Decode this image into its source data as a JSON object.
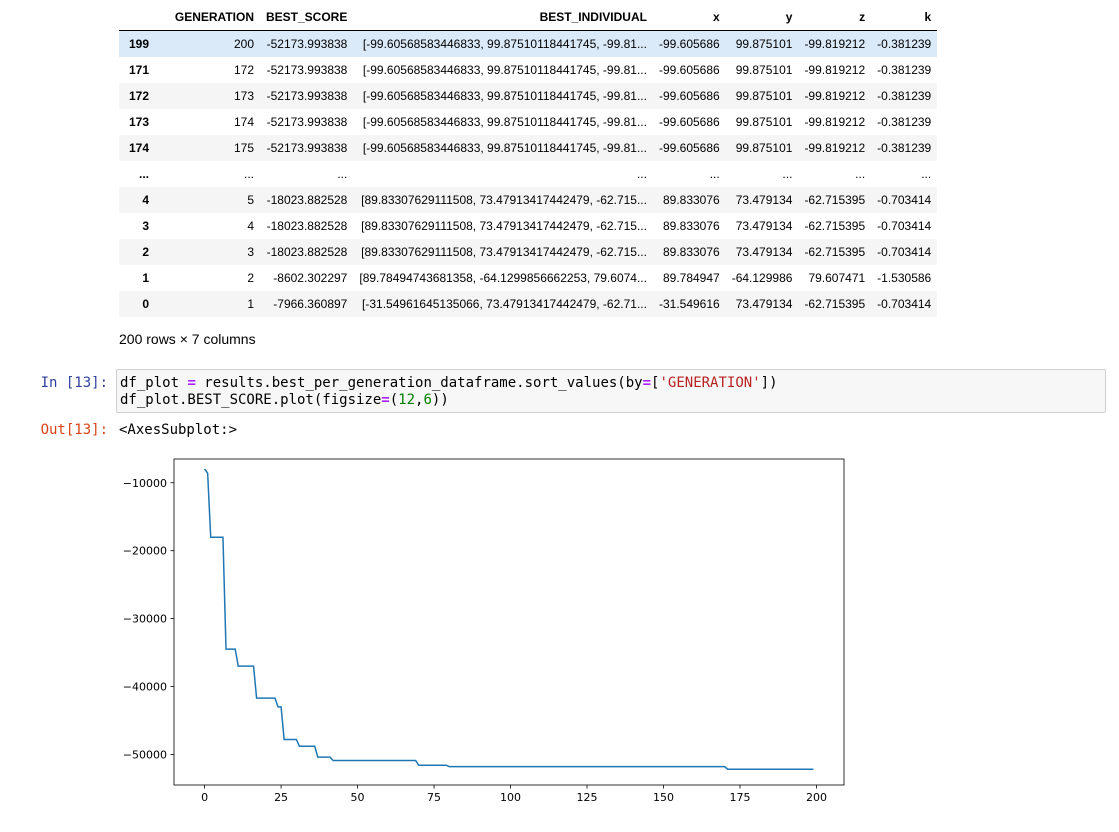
{
  "dataframe": {
    "columns": [
      "GENERATION",
      "BEST_SCORE",
      "BEST_INDIVIDUAL",
      "x",
      "y",
      "z",
      "k"
    ],
    "rows": [
      {
        "index": "199",
        "GENERATION": "200",
        "BEST_SCORE": "-52173.993838",
        "BEST_INDIVIDUAL": "[-99.60568583446833, 99.87510118441745, -99.81...",
        "x": "-99.605686",
        "y": "99.875101",
        "z": "-99.819212",
        "k": "-0.381239"
      },
      {
        "index": "171",
        "GENERATION": "172",
        "BEST_SCORE": "-52173.993838",
        "BEST_INDIVIDUAL": "[-99.60568583446833, 99.87510118441745, -99.81...",
        "x": "-99.605686",
        "y": "99.875101",
        "z": "-99.819212",
        "k": "-0.381239"
      },
      {
        "index": "172",
        "GENERATION": "173",
        "BEST_SCORE": "-52173.993838",
        "BEST_INDIVIDUAL": "[-99.60568583446833, 99.87510118441745, -99.81...",
        "x": "-99.605686",
        "y": "99.875101",
        "z": "-99.819212",
        "k": "-0.381239"
      },
      {
        "index": "173",
        "GENERATION": "174",
        "BEST_SCORE": "-52173.993838",
        "BEST_INDIVIDUAL": "[-99.60568583446833, 99.87510118441745, -99.81...",
        "x": "-99.605686",
        "y": "99.875101",
        "z": "-99.819212",
        "k": "-0.381239"
      },
      {
        "index": "174",
        "GENERATION": "175",
        "BEST_SCORE": "-52173.993838",
        "BEST_INDIVIDUAL": "[-99.60568583446833, 99.87510118441745, -99.81...",
        "x": "-99.605686",
        "y": "99.875101",
        "z": "-99.819212",
        "k": "-0.381239"
      },
      {
        "index": "...",
        "GENERATION": "...",
        "BEST_SCORE": "...",
        "BEST_INDIVIDUAL": "...",
        "x": "...",
        "y": "...",
        "z": "...",
        "k": "..."
      },
      {
        "index": "4",
        "GENERATION": "5",
        "BEST_SCORE": "-18023.882528",
        "BEST_INDIVIDUAL": "[89.83307629111508, 73.47913417442479, -62.715...",
        "x": "89.833076",
        "y": "73.479134",
        "z": "-62.715395",
        "k": "-0.703414"
      },
      {
        "index": "3",
        "GENERATION": "4",
        "BEST_SCORE": "-18023.882528",
        "BEST_INDIVIDUAL": "[89.83307629111508, 73.47913417442479, -62.715...",
        "x": "89.833076",
        "y": "73.479134",
        "z": "-62.715395",
        "k": "-0.703414"
      },
      {
        "index": "2",
        "GENERATION": "3",
        "BEST_SCORE": "-18023.882528",
        "BEST_INDIVIDUAL": "[89.83307629111508, 73.47913417442479, -62.715...",
        "x": "89.833076",
        "y": "73.479134",
        "z": "-62.715395",
        "k": "-0.703414"
      },
      {
        "index": "1",
        "GENERATION": "2",
        "BEST_SCORE": "-8602.302297",
        "BEST_INDIVIDUAL": "[89.78494743681358, -64.1299856662253, 79.6074...",
        "x": "89.784947",
        "y": "-64.129986",
        "z": "79.607471",
        "k": "-1.530586"
      },
      {
        "index": "0",
        "GENERATION": "1",
        "BEST_SCORE": "-7966.360897",
        "BEST_INDIVIDUAL": "[-31.54961645135066, 73.47913417442479, -62.71...",
        "x": "-31.549616",
        "y": "73.479134",
        "z": "-62.715395",
        "k": "-0.703414"
      }
    ],
    "shape_note": "200 rows × 7 columns"
  },
  "cell13": {
    "in_prompt": "In [13]:",
    "out_prompt": "Out[13]:",
    "code": [
      [
        {
          "t": "df_plot ",
          "c": ""
        },
        {
          "t": "=",
          "c": "op"
        },
        {
          "t": " results.best_per_generation_dataframe.sort_values(by",
          "c": ""
        },
        {
          "t": "=",
          "c": "op"
        },
        {
          "t": "[",
          "c": ""
        },
        {
          "t": "'GENERATION'",
          "c": "str"
        },
        {
          "t": "])",
          "c": ""
        }
      ],
      [
        {
          "t": "df_plot.BEST_SCORE.plot(figsize",
          "c": ""
        },
        {
          "t": "=",
          "c": "op"
        },
        {
          "t": "(",
          "c": ""
        },
        {
          "t": "12",
          "c": "num"
        },
        {
          "t": ",",
          "c": ""
        },
        {
          "t": "6",
          "c": "num"
        },
        {
          "t": "))",
          "c": ""
        }
      ]
    ],
    "output_text": "<AxesSubplot:>"
  },
  "chart_data": {
    "type": "line",
    "title": "",
    "xlabel": "",
    "ylabel": "",
    "xlim": [
      -10,
      209
    ],
    "ylim": [
      -54500,
      -6500
    ],
    "xticks": [
      0,
      25,
      50,
      75,
      100,
      125,
      150,
      175,
      200
    ],
    "yticks": [
      -10000,
      -20000,
      -30000,
      -40000,
      -50000
    ],
    "xtick_labels": [
      "0",
      "25",
      "50",
      "75",
      "100",
      "125",
      "150",
      "175",
      "200"
    ],
    "ytick_labels": [
      "−10000",
      "−20000",
      "−30000",
      "−40000",
      "−50000"
    ],
    "line_color": "#1f77b4",
    "grid": false,
    "series": [
      {
        "x": [
          0,
          1,
          2,
          3,
          6,
          7,
          10,
          11,
          16,
          17,
          22,
          23,
          24,
          25,
          26,
          27,
          30,
          31,
          36,
          37,
          41,
          42,
          69,
          70,
          79,
          80,
          170,
          171,
          199
        ],
        "values": [
          -7966,
          -8602,
          -18024,
          -18024,
          -18024,
          -34500,
          -34500,
          -37000,
          -37000,
          -41700,
          -41700,
          -41700,
          -43000,
          -43000,
          -47800,
          -47800,
          -47800,
          -48800,
          -48800,
          -50400,
          -50400,
          -50900,
          -50900,
          -51600,
          -51600,
          -51800,
          -51800,
          -52174,
          -52174
        ]
      }
    ]
  }
}
